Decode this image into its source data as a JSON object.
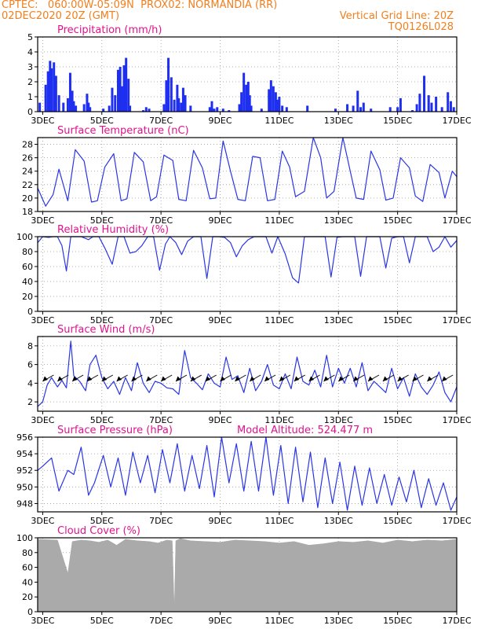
{
  "header": {
    "line1": "CPTEC:   060:00W-05:09N  PROX02: NORMANDIA (RR)",
    "line2": "02DEC2020 20Z (GMT)",
    "grid_note": "Vertical Grid Line: 20Z",
    "code": "TQ0126L028"
  },
  "colors": {
    "header": "#f07f1e",
    "title": "#e0138c",
    "series": "#2a35e6",
    "bars": "#1f2ff0",
    "cloud": "#aaaaaa",
    "grid": "#999999"
  },
  "x_ticks": [
    "3DEC",
    "5DEC",
    "7DEC",
    "9DEC",
    "11DEC",
    "13DEC",
    "15DEC",
    "17DEC"
  ],
  "chart_data": [
    {
      "id": "precip",
      "type": "bar",
      "title": "Precipitation (mm/h)",
      "ylim": [
        0,
        5
      ],
      "yticks": [
        0,
        1,
        2,
        3,
        4,
        5
      ],
      "x_range_days": [
        2.83,
        17.0
      ],
      "grid": true,
      "series": [
        {
          "x": [
            2.9,
            3.1,
            3.18,
            3.25,
            3.3,
            3.38,
            3.45,
            3.55,
            3.7,
            3.85,
            3.93,
            4.0,
            4.05,
            4.12,
            4.4,
            4.5,
            4.55,
            4.6,
            5.05,
            5.25,
            5.35,
            5.45,
            5.55,
            5.62,
            5.68,
            5.75,
            5.82,
            5.9,
            5.95,
            6.4,
            6.5,
            6.6,
            7.1,
            7.18,
            7.25,
            7.35,
            7.45,
            7.55,
            7.6,
            7.68,
            7.75,
            7.82,
            8.0,
            8.65,
            8.72,
            8.8,
            8.9,
            9.1,
            9.3,
            9.65,
            9.72,
            9.8,
            9.88,
            9.95,
            10.0,
            10.05,
            10.4,
            10.65,
            10.72,
            10.8,
            10.88,
            10.95,
            11.0,
            11.1,
            11.25,
            11.95,
            12.9,
            13.3,
            13.5,
            13.65,
            13.75,
            13.85,
            14.1,
            14.75,
            15.0,
            15.1,
            15.5,
            15.65,
            15.75,
            15.9,
            16.05,
            16.15,
            16.3,
            16.5,
            16.7,
            16.8,
            16.9
          ],
          "values": [
            0.6,
            1.8,
            2.7,
            3.4,
            2.9,
            3.3,
            2.4,
            1.1,
            0.6,
            0.9,
            2.6,
            1.4,
            0.7,
            0.4,
            0.5,
            1.2,
            0.6,
            0.3,
            0.2,
            0.4,
            1.6,
            1.1,
            2.8,
            3.0,
            1.7,
            3.1,
            3.6,
            2.2,
            0.4,
            0.1,
            0.3,
            0.2,
            0.5,
            2.1,
            3.6,
            2.3,
            0.8,
            1.8,
            0.9,
            0.6,
            1.6,
            1.1,
            0.4,
            0.3,
            0.7,
            0.2,
            0.3,
            0.2,
            0.1,
            0.5,
            1.3,
            2.6,
            1.8,
            2.0,
            1.1,
            0.4,
            0.2,
            1.5,
            2.1,
            1.7,
            1.3,
            0.8,
            1.0,
            0.4,
            0.3,
            0.4,
            0.2,
            0.5,
            0.4,
            1.4,
            0.3,
            0.6,
            0.2,
            0.3,
            0.3,
            0.9,
            0.1,
            0.5,
            1.2,
            2.4,
            1.1,
            0.6,
            1.0,
            0.3,
            1.3,
            0.7,
            0.3
          ]
        }
      ]
    },
    {
      "id": "temp",
      "type": "line",
      "title": "Surface Temperature (nC)",
      "ylim": [
        18,
        29
      ],
      "yticks": [
        18,
        20,
        22,
        24,
        26,
        28
      ],
      "x_range_days": [
        2.83,
        17.0
      ],
      "grid": true,
      "series": [
        {
          "x": [
            2.83,
            3.1,
            3.35,
            3.55,
            3.85,
            4.1,
            4.4,
            4.65,
            4.85,
            5.1,
            5.4,
            5.65,
            5.85,
            6.1,
            6.4,
            6.65,
            6.85,
            7.1,
            7.4,
            7.6,
            7.85,
            8.1,
            8.4,
            8.65,
            8.85,
            9.1,
            9.35,
            9.6,
            9.85,
            10.1,
            10.35,
            10.6,
            10.85,
            11.1,
            11.35,
            11.55,
            11.85,
            12.15,
            12.4,
            12.6,
            12.85,
            13.15,
            13.4,
            13.6,
            13.85,
            14.1,
            14.4,
            14.6,
            14.85,
            15.1,
            15.4,
            15.6,
            15.85,
            16.1,
            16.4,
            16.6,
            16.85,
            17.0
          ],
          "values": [
            21.5,
            18.8,
            20.5,
            24.3,
            19.6,
            27.2,
            25.5,
            19.4,
            19.6,
            24.6,
            26.6,
            19.6,
            19.9,
            26.8,
            25.4,
            19.6,
            20.2,
            26.4,
            25.6,
            19.8,
            19.6,
            27.1,
            24.5,
            19.9,
            20.0,
            28.5,
            24.0,
            19.8,
            19.6,
            26.2,
            26.0,
            19.6,
            19.8,
            27.0,
            24.6,
            20.2,
            21.0,
            29.0,
            26.0,
            20.0,
            21.0,
            29.0,
            24.0,
            20.0,
            19.8,
            27.0,
            24.2,
            19.7,
            20.0,
            26.0,
            24.5,
            20.3,
            19.5,
            25.0,
            23.8,
            20.0,
            24.0,
            23.2
          ]
        }
      ]
    },
    {
      "id": "rh",
      "type": "line",
      "title": "Relative Humidity (%)",
      "ylim": [
        0,
        100
      ],
      "yticks": [
        0,
        20,
        40,
        60,
        80,
        100
      ],
      "x_range_days": [
        2.83,
        17.0
      ],
      "grid": true,
      "series": [
        {
          "x": [
            2.83,
            3.0,
            3.2,
            3.35,
            3.5,
            3.65,
            3.8,
            3.95,
            4.1,
            4.3,
            4.55,
            4.7,
            4.9,
            5.1,
            5.35,
            5.55,
            5.75,
            5.95,
            6.15,
            6.35,
            6.55,
            6.75,
            6.95,
            7.15,
            7.3,
            7.5,
            7.7,
            7.9,
            8.1,
            8.35,
            8.55,
            8.75,
            8.95,
            9.15,
            9.35,
            9.55,
            9.75,
            9.95,
            10.15,
            10.35,
            10.55,
            10.75,
            10.95,
            11.2,
            11.45,
            11.65,
            11.85,
            12.05,
            12.3,
            12.55,
            12.75,
            12.95,
            13.15,
            13.35,
            13.55,
            13.75,
            13.95,
            14.15,
            14.4,
            14.6,
            14.8,
            15.0,
            15.2,
            15.4,
            15.6,
            15.8,
            16.0,
            16.2,
            16.4,
            16.6,
            16.8,
            17.0
          ],
          "values": [
            92,
            100,
            99,
            100,
            100,
            88,
            54,
            100,
            100,
            100,
            96,
            100,
            100,
            85,
            63,
            100,
            100,
            78,
            80,
            88,
            100,
            100,
            55,
            90,
            100,
            92,
            76,
            94,
            100,
            100,
            44,
            100,
            100,
            99,
            92,
            73,
            88,
            96,
            100,
            100,
            100,
            78,
            100,
            77,
            45,
            38,
            100,
            100,
            100,
            100,
            46,
            99,
            100,
            100,
            100,
            47,
            100,
            100,
            100,
            58,
            98,
            100,
            100,
            65,
            100,
            100,
            100,
            80,
            86,
            100,
            86,
            95
          ]
        }
      ]
    },
    {
      "id": "wind",
      "type": "line",
      "title": "Surface Wind (m/s)",
      "ylim": [
        1,
        9
      ],
      "yticks": [
        2,
        4,
        6,
        8
      ],
      "x_range_days": [
        2.83,
        17.0
      ],
      "grid": true,
      "vectors": "wind direction arrows from the northeast",
      "series": [
        {
          "x": [
            2.83,
            3.0,
            3.15,
            3.3,
            3.5,
            3.65,
            3.8,
            3.95,
            4.05,
            4.25,
            4.45,
            4.6,
            4.8,
            5.0,
            5.2,
            5.4,
            5.6,
            5.8,
            6.0,
            6.2,
            6.4,
            6.6,
            6.8,
            7.0,
            7.2,
            7.4,
            7.6,
            7.8,
            8.0,
            8.2,
            8.4,
            8.6,
            8.8,
            9.0,
            9.2,
            9.4,
            9.6,
            9.8,
            10.0,
            10.2,
            10.4,
            10.6,
            10.8,
            11.0,
            11.2,
            11.4,
            11.6,
            11.8,
            12.0,
            12.2,
            12.4,
            12.6,
            12.8,
            13.0,
            13.2,
            13.4,
            13.6,
            13.8,
            14.0,
            14.2,
            14.4,
            14.6,
            14.8,
            15.0,
            15.2,
            15.4,
            15.6,
            15.8,
            16.0,
            16.2,
            16.4,
            16.6,
            16.8,
            17.0
          ],
          "values": [
            1.5,
            2.0,
            3.8,
            4.6,
            3.6,
            4.3,
            3.5,
            8.5,
            4.8,
            4.2,
            3.2,
            6.0,
            7.0,
            4.6,
            3.4,
            4.2,
            2.8,
            4.6,
            3.2,
            6.2,
            4.0,
            3.0,
            4.2,
            4.0,
            3.5,
            3.4,
            2.8,
            7.5,
            4.6,
            4.0,
            3.3,
            5.0,
            4.0,
            3.6,
            6.8,
            4.4,
            4.8,
            3.0,
            5.6,
            3.2,
            4.2,
            6.0,
            3.8,
            3.4,
            5.0,
            3.4,
            6.8,
            4.2,
            3.8,
            5.4,
            3.6,
            7.0,
            3.6,
            5.6,
            4.0,
            5.6,
            3.6,
            6.2,
            3.2,
            4.2,
            3.6,
            3.0,
            5.6,
            3.4,
            4.6,
            2.6,
            5.0,
            3.6,
            2.8,
            3.8,
            5.2,
            3.0,
            2.0,
            3.6
          ]
        }
      ]
    },
    {
      "id": "pressure",
      "type": "line",
      "title": "Surface Pressure (hPa)",
      "annotation": "Model Altitude: 524.477 m",
      "ylim": [
        947,
        956
      ],
      "yticks": [
        948,
        950,
        952,
        954,
        956
      ],
      "x_range_days": [
        2.83,
        17.0
      ],
      "grid": true,
      "series": [
        {
          "x": [
            2.83,
            3.0,
            3.3,
            3.55,
            3.85,
            4.05,
            4.3,
            4.55,
            4.75,
            5.05,
            5.3,
            5.55,
            5.8,
            6.05,
            6.3,
            6.55,
            6.8,
            7.05,
            7.3,
            7.55,
            7.8,
            8.05,
            8.3,
            8.55,
            8.8,
            9.05,
            9.3,
            9.55,
            9.8,
            10.05,
            10.3,
            10.55,
            10.8,
            11.05,
            11.3,
            11.55,
            11.8,
            12.05,
            12.3,
            12.55,
            12.8,
            13.05,
            13.3,
            13.55,
            13.8,
            14.05,
            14.3,
            14.55,
            14.8,
            15.05,
            15.3,
            15.55,
            15.8,
            16.05,
            16.3,
            16.55,
            16.8,
            17.0
          ],
          "values": [
            952.0,
            952.5,
            953.5,
            949.5,
            952.0,
            951.5,
            954.8,
            949.0,
            950.5,
            953.8,
            950.0,
            953.5,
            949.0,
            954.2,
            950.5,
            953.8,
            949.3,
            954.5,
            950.5,
            955.2,
            949.5,
            953.8,
            949.8,
            955.0,
            948.8,
            956.0,
            950.5,
            955.2,
            949.5,
            955.5,
            949.5,
            956.0,
            949.0,
            955.0,
            948.0,
            954.8,
            948.2,
            954.2,
            947.5,
            953.5,
            948.0,
            953.0,
            947.2,
            952.5,
            947.8,
            952.3,
            948.0,
            951.5,
            947.8,
            951.2,
            948.2,
            952.0,
            947.5,
            951.0,
            947.8,
            950.5,
            947.2,
            948.8
          ]
        }
      ]
    },
    {
      "id": "cloud",
      "type": "area",
      "title": "Cloud Cover (%)",
      "ylim": [
        0,
        100
      ],
      "yticks": [
        0,
        20,
        40,
        60,
        80,
        100
      ],
      "x_range_days": [
        2.83,
        17.0
      ],
      "grid": true,
      "series": [
        {
          "x": [
            2.83,
            3.5,
            3.75,
            3.85,
            4.0,
            4.3,
            4.6,
            4.9,
            5.2,
            5.5,
            5.8,
            6.2,
            6.6,
            6.9,
            7.2,
            7.38,
            7.45,
            7.5,
            7.65,
            8.0,
            8.5,
            9.0,
            9.5,
            10.0,
            10.5,
            11.0,
            11.5,
            12.0,
            12.5,
            13.0,
            13.5,
            14.0,
            14.5,
            15.0,
            15.5,
            16.0,
            16.5,
            17.0
          ],
          "values": [
            98,
            97,
            65,
            52,
            95,
            97,
            96,
            94,
            97,
            90,
            98,
            96,
            95,
            93,
            97,
            96,
            2,
            96,
            99,
            96,
            95,
            94,
            97,
            96,
            95,
            93,
            95,
            90,
            92,
            95,
            94,
            96,
            93,
            97,
            95,
            97,
            96,
            98
          ]
        }
      ]
    }
  ]
}
